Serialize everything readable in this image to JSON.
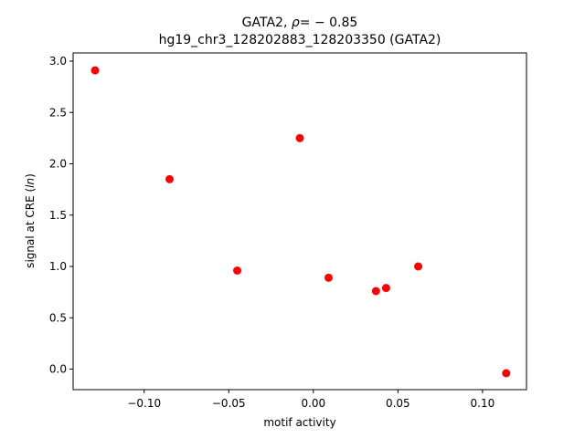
{
  "chart_data": {
    "type": "scatter",
    "title_prefix": "GATA2, ",
    "title_rho": "ρ",
    "title_suffix": "= − 0.85",
    "subtitle": "hg19_chr3_128202883_128203350 (GATA2)",
    "xlabel": "motif activity",
    "ylabel_prefix": "signal at CRE (",
    "ylabel_italic": "ln",
    "ylabel_suffix": ")",
    "xlim": [
      -0.142,
      0.126
    ],
    "ylim": [
      -0.2,
      3.08
    ],
    "xticks": [
      {
        "value": -0.1,
        "label": "−0.10"
      },
      {
        "value": -0.05,
        "label": "−0.05"
      },
      {
        "value": 0.0,
        "label": "0.00"
      },
      {
        "value": 0.05,
        "label": "0.05"
      },
      {
        "value": 0.1,
        "label": "0.10"
      }
    ],
    "yticks": [
      {
        "value": 0.0,
        "label": "0.0"
      },
      {
        "value": 0.5,
        "label": "0.5"
      },
      {
        "value": 1.0,
        "label": "1.0"
      },
      {
        "value": 1.5,
        "label": "1.5"
      },
      {
        "value": 2.0,
        "label": "2.0"
      },
      {
        "value": 2.5,
        "label": "2.5"
      },
      {
        "value": 3.0,
        "label": "3.0"
      }
    ],
    "grid": false,
    "marker_color": "#ff0000",
    "points": [
      {
        "x": -0.129,
        "y": 2.91
      },
      {
        "x": -0.085,
        "y": 1.85
      },
      {
        "x": -0.045,
        "y": 0.96
      },
      {
        "x": -0.008,
        "y": 2.25
      },
      {
        "x": 0.009,
        "y": 0.89
      },
      {
        "x": 0.037,
        "y": 0.76
      },
      {
        "x": 0.043,
        "y": 0.79
      },
      {
        "x": 0.062,
        "y": 1.0
      },
      {
        "x": 0.114,
        "y": -0.04
      }
    ]
  }
}
